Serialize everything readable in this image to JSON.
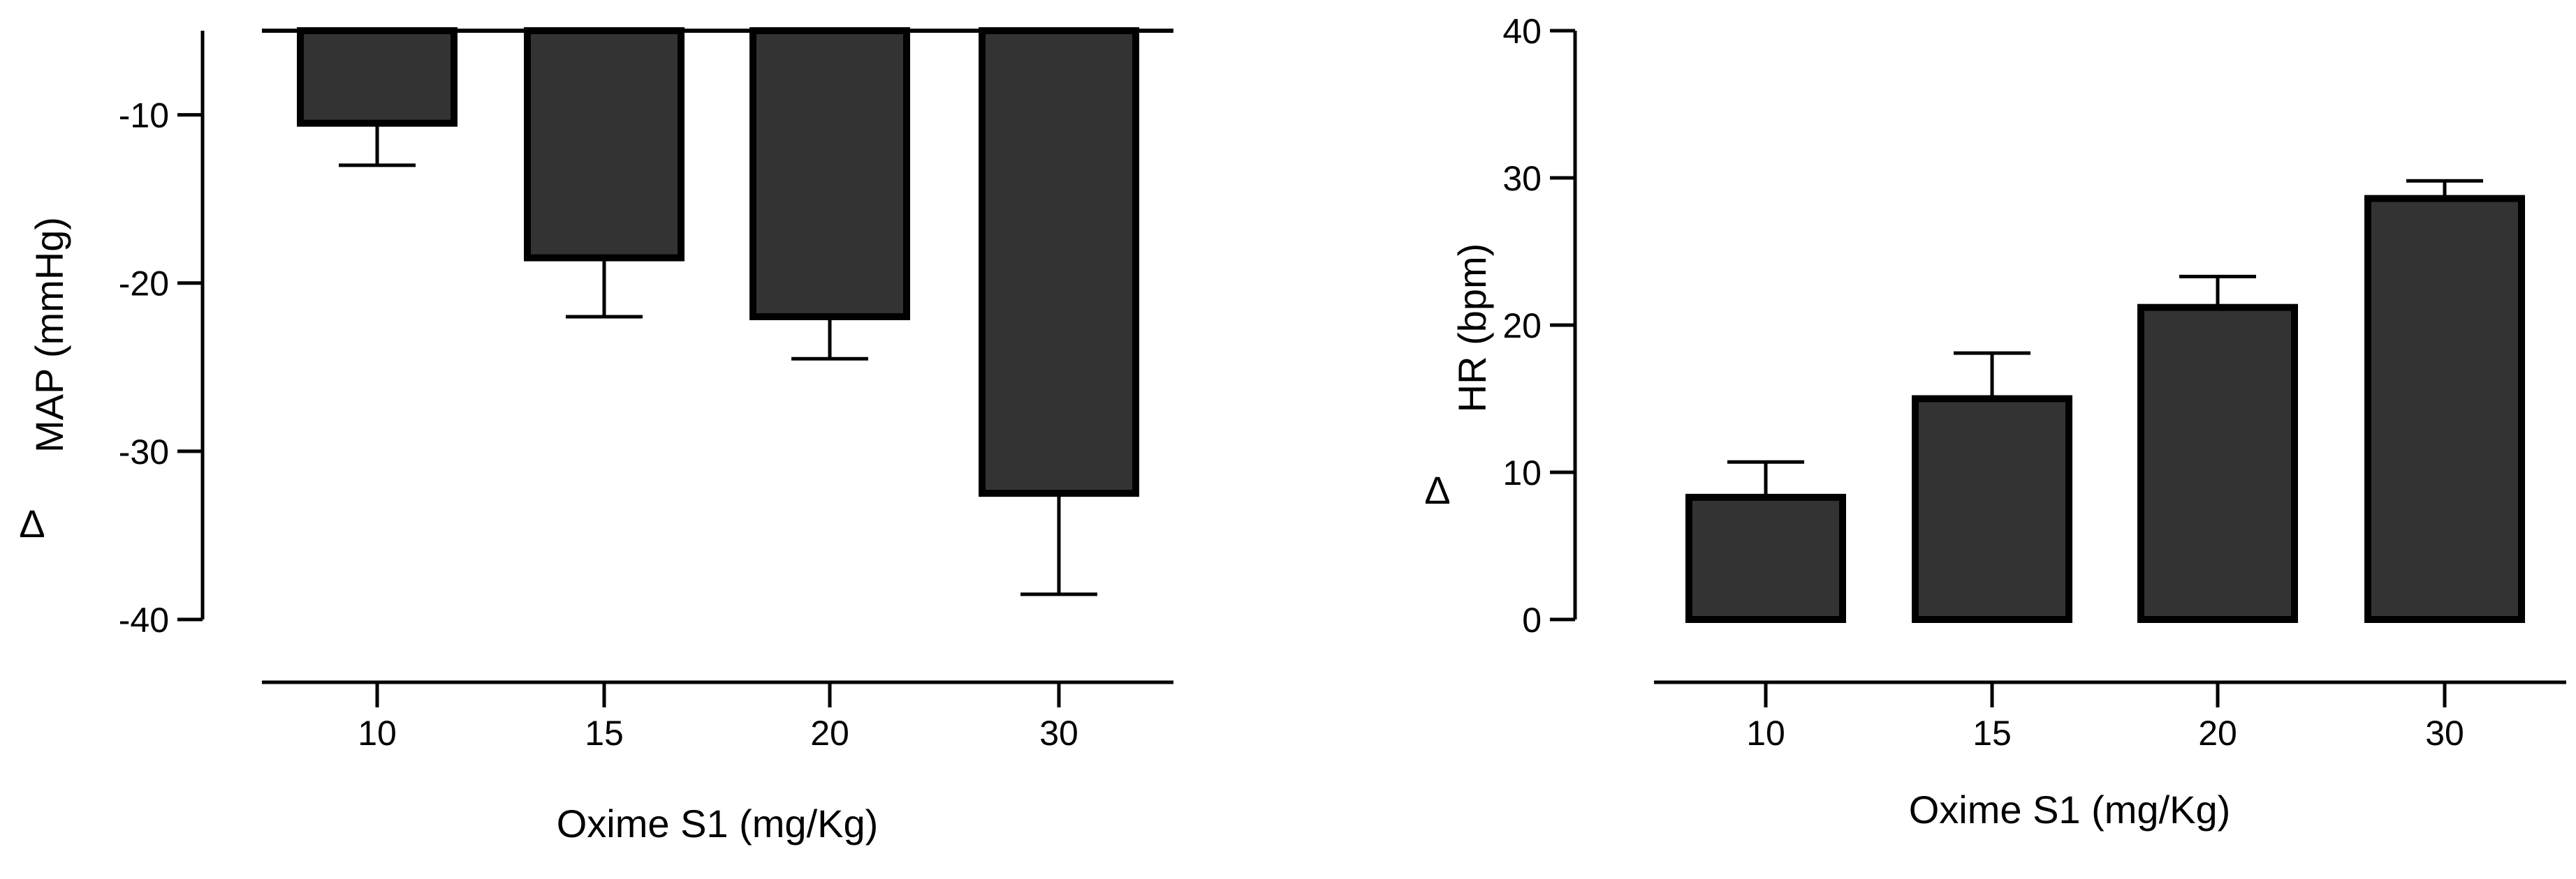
{
  "colors": {
    "bar_fill": "#333333",
    "axis": "#000000",
    "background": "#ffffff"
  },
  "chart_data": [
    {
      "type": "bar",
      "categories": [
        "10",
        "15",
        "20",
        "30"
      ],
      "values": [
        -10.5,
        -18.5,
        -22.0,
        -32.5
      ],
      "errors": [
        2.5,
        3.5,
        2.5,
        6.0
      ],
      "error_direction": "away_from_zero",
      "xlabel": "Oxime S1 (mg/Kg)",
      "ylabel": "MAP (mmHg)",
      "ylabel_prefix": "Δ",
      "ylim": [
        -40,
        -5
      ],
      "yticks": [
        -10,
        -20,
        -30,
        -40
      ],
      "ytick_labels": [
        "-10",
        "-20",
        "-30",
        "-40"
      ],
      "baseline": -5,
      "grid": false
    },
    {
      "type": "bar",
      "categories": [
        "10",
        "15",
        "20",
        "30"
      ],
      "values": [
        8.3,
        15.0,
        21.2,
        28.6
      ],
      "errors": [
        2.4,
        3.1,
        2.1,
        1.2
      ],
      "error_direction": "away_from_zero",
      "xlabel": "Oxime S1 (mg/Kg)",
      "ylabel": "HR (bpm)",
      "ylabel_prefix": "Δ",
      "ylim": [
        0,
        40
      ],
      "yticks": [
        0,
        10,
        20,
        30,
        40
      ],
      "ytick_labels": [
        "0",
        "10",
        "20",
        "30",
        "40"
      ],
      "baseline": 0,
      "grid": false
    }
  ]
}
